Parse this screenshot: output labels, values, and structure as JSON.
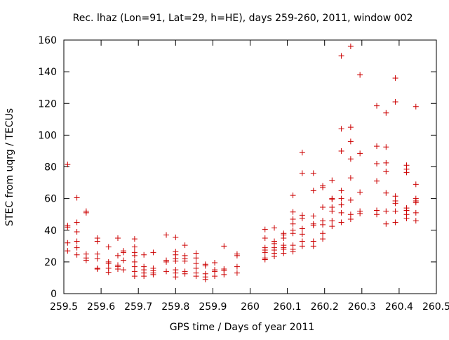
{
  "chart_data": {
    "type": "scatter",
    "title": "Rec. lhaz (Lon=91, Lat=29, h=HE), days 259-260, 2011, window 002",
    "xlabel": "GPS time / Days of year 2011",
    "ylabel": "STEC from uqrg / TECUs",
    "xlim": [
      259.5,
      260.5
    ],
    "ylim": [
      0,
      160
    ],
    "xticks": [
      259.5,
      259.6,
      259.7,
      259.8,
      259.9,
      260,
      260.1,
      260.2,
      260.3,
      260.4,
      260.5
    ],
    "xtick_labels": [
      "259.5",
      "259.6",
      "259.7",
      "259.8",
      "259.9",
      "260",
      "260.1",
      "260.2",
      "260.3",
      "260.4",
      "260.5"
    ],
    "yticks": [
      0,
      20,
      40,
      60,
      80,
      100,
      120,
      140,
      160
    ],
    "ytick_labels": [
      "0",
      "20",
      "40",
      "60",
      "80",
      "100",
      "120",
      "140",
      "160"
    ],
    "marker": "+",
    "color": "#cc0000",
    "series": [
      {
        "name": "STEC",
        "points": [
          [
            259.51,
            81.5
          ],
          [
            259.51,
            43
          ],
          [
            259.51,
            42
          ],
          [
            259.51,
            32
          ],
          [
            259.51,
            27
          ],
          [
            259.535,
            60.5
          ],
          [
            259.535,
            45
          ],
          [
            259.535,
            39
          ],
          [
            259.535,
            33
          ],
          [
            259.535,
            29
          ],
          [
            259.535,
            24.5
          ],
          [
            259.56,
            52
          ],
          [
            259.56,
            51
          ],
          [
            259.56,
            25
          ],
          [
            259.56,
            22.5
          ],
          [
            259.56,
            21
          ],
          [
            259.59,
            35
          ],
          [
            259.59,
            33
          ],
          [
            259.59,
            25
          ],
          [
            259.59,
            22
          ],
          [
            259.59,
            16
          ],
          [
            259.59,
            15.5
          ],
          [
            259.62,
            29.5
          ],
          [
            259.62,
            20
          ],
          [
            259.62,
            19
          ],
          [
            259.62,
            16
          ],
          [
            259.62,
            13.5
          ],
          [
            259.645,
            35
          ],
          [
            259.645,
            24
          ],
          [
            259.645,
            18
          ],
          [
            259.645,
            17
          ],
          [
            259.645,
            15.5
          ],
          [
            259.66,
            27
          ],
          [
            259.66,
            26
          ],
          [
            259.66,
            21
          ],
          [
            259.66,
            15
          ],
          [
            259.69,
            34.5
          ],
          [
            259.69,
            29.5
          ],
          [
            259.69,
            26
          ],
          [
            259.69,
            24
          ],
          [
            259.69,
            20
          ],
          [
            259.69,
            17
          ],
          [
            259.69,
            14
          ],
          [
            259.69,
            11
          ],
          [
            259.715,
            24.5
          ],
          [
            259.715,
            17
          ],
          [
            259.715,
            15
          ],
          [
            259.715,
            13
          ],
          [
            259.715,
            11
          ],
          [
            259.74,
            26
          ],
          [
            259.74,
            16
          ],
          [
            259.74,
            14.5
          ],
          [
            259.74,
            13
          ],
          [
            259.74,
            12
          ],
          [
            259.775,
            37
          ],
          [
            259.775,
            21
          ],
          [
            259.775,
            20
          ],
          [
            259.775,
            14
          ],
          [
            259.8,
            35.5
          ],
          [
            259.8,
            26.5
          ],
          [
            259.8,
            24.5
          ],
          [
            259.8,
            22
          ],
          [
            259.8,
            20.5
          ],
          [
            259.8,
            15
          ],
          [
            259.8,
            13
          ],
          [
            259.8,
            10.5
          ],
          [
            259.825,
            30.5
          ],
          [
            259.825,
            24
          ],
          [
            259.825,
            22
          ],
          [
            259.825,
            20.5
          ],
          [
            259.825,
            14
          ],
          [
            259.825,
            12.5
          ],
          [
            259.855,
            25.5
          ],
          [
            259.855,
            22.5
          ],
          [
            259.855,
            19
          ],
          [
            259.855,
            16
          ],
          [
            259.855,
            13
          ],
          [
            259.855,
            11
          ],
          [
            259.88,
            18.5
          ],
          [
            259.88,
            17.5
          ],
          [
            259.88,
            12.5
          ],
          [
            259.88,
            10.5
          ],
          [
            259.88,
            9
          ],
          [
            259.905,
            19.5
          ],
          [
            259.905,
            15
          ],
          [
            259.905,
            14
          ],
          [
            259.905,
            11
          ],
          [
            259.93,
            30
          ],
          [
            259.93,
            15.5
          ],
          [
            259.93,
            14.5
          ],
          [
            259.93,
            12
          ],
          [
            259.965,
            25
          ],
          [
            259.965,
            24
          ],
          [
            259.965,
            17
          ],
          [
            259.965,
            13
          ],
          [
            260.04,
            40.5
          ],
          [
            260.04,
            35
          ],
          [
            260.04,
            29
          ],
          [
            260.04,
            27.5
          ],
          [
            260.04,
            26
          ],
          [
            260.04,
            22.5
          ],
          [
            260.04,
            21.5
          ],
          [
            260.065,
            41.5
          ],
          [
            260.065,
            33
          ],
          [
            260.065,
            31.5
          ],
          [
            260.065,
            29
          ],
          [
            260.065,
            27.5
          ],
          [
            260.065,
            25.5
          ],
          [
            260.065,
            23.5
          ],
          [
            260.09,
            38
          ],
          [
            260.09,
            37
          ],
          [
            260.09,
            35
          ],
          [
            260.09,
            30.5
          ],
          [
            260.09,
            29
          ],
          [
            260.09,
            28
          ],
          [
            260.09,
            25.5
          ],
          [
            260.115,
            62
          ],
          [
            260.115,
            51.5
          ],
          [
            260.115,
            47
          ],
          [
            260.115,
            44
          ],
          [
            260.115,
            40
          ],
          [
            260.115,
            38
          ],
          [
            260.115,
            30.5
          ],
          [
            260.115,
            28
          ],
          [
            260.115,
            26.5
          ],
          [
            260.14,
            89
          ],
          [
            260.14,
            76
          ],
          [
            260.14,
            49.5
          ],
          [
            260.14,
            47.5
          ],
          [
            260.14,
            41
          ],
          [
            260.14,
            37.5
          ],
          [
            260.14,
            33
          ],
          [
            260.14,
            30
          ],
          [
            260.17,
            76
          ],
          [
            260.17,
            65
          ],
          [
            260.17,
            49
          ],
          [
            260.17,
            44
          ],
          [
            260.17,
            43
          ],
          [
            260.17,
            33
          ],
          [
            260.17,
            30
          ],
          [
            260.195,
            68
          ],
          [
            260.195,
            67
          ],
          [
            260.195,
            54.5
          ],
          [
            260.195,
            46
          ],
          [
            260.195,
            43.5
          ],
          [
            260.195,
            38
          ],
          [
            260.195,
            34.5
          ],
          [
            260.22,
            71.5
          ],
          [
            260.22,
            60
          ],
          [
            260.22,
            59.5
          ],
          [
            260.22,
            54.5
          ],
          [
            260.22,
            52
          ],
          [
            260.22,
            46
          ],
          [
            260.22,
            42.5
          ],
          [
            260.245,
            150
          ],
          [
            260.245,
            104
          ],
          [
            260.245,
            90
          ],
          [
            260.245,
            65
          ],
          [
            260.245,
            60
          ],
          [
            260.245,
            56
          ],
          [
            260.245,
            51
          ],
          [
            260.245,
            45
          ],
          [
            260.27,
            156
          ],
          [
            260.27,
            105
          ],
          [
            260.27,
            96
          ],
          [
            260.27,
            85
          ],
          [
            260.27,
            73
          ],
          [
            260.27,
            59
          ],
          [
            260.27,
            50
          ],
          [
            260.27,
            47
          ],
          [
            260.295,
            138
          ],
          [
            260.295,
            88.5
          ],
          [
            260.295,
            64
          ],
          [
            260.295,
            52
          ],
          [
            260.295,
            50.5
          ],
          [
            260.34,
            118.5
          ],
          [
            260.34,
            93
          ],
          [
            260.34,
            82
          ],
          [
            260.34,
            71
          ],
          [
            260.34,
            52.5
          ],
          [
            260.34,
            50
          ],
          [
            260.365,
            114
          ],
          [
            260.365,
            92.5
          ],
          [
            260.365,
            82.5
          ],
          [
            260.365,
            77
          ],
          [
            260.365,
            63.5
          ],
          [
            260.365,
            52
          ],
          [
            260.365,
            44
          ],
          [
            260.39,
            136
          ],
          [
            260.39,
            121
          ],
          [
            260.39,
            61.5
          ],
          [
            260.39,
            58.5
          ],
          [
            260.39,
            57
          ],
          [
            260.39,
            52
          ],
          [
            260.39,
            45
          ],
          [
            260.42,
            81
          ],
          [
            260.42,
            78.5
          ],
          [
            260.42,
            76.5
          ],
          [
            260.42,
            54
          ],
          [
            260.42,
            52.5
          ],
          [
            260.42,
            50
          ],
          [
            260.42,
            47.5
          ],
          [
            260.445,
            118
          ],
          [
            260.445,
            69
          ],
          [
            260.445,
            60
          ],
          [
            260.445,
            58.5
          ],
          [
            260.445,
            57.5
          ],
          [
            260.445,
            51
          ],
          [
            260.445,
            46
          ]
        ]
      }
    ]
  }
}
